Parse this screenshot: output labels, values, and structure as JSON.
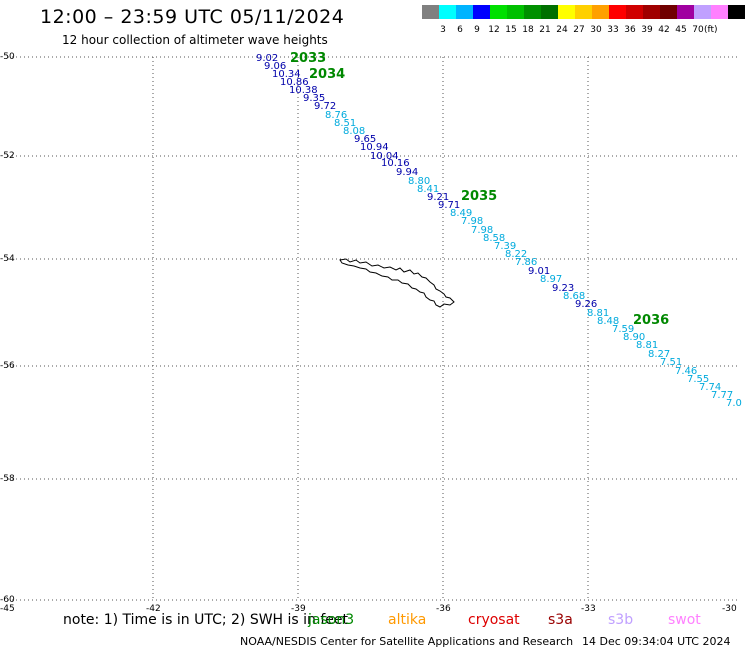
{
  "title": "12:00 – 23:59 UTC 05/11/2024",
  "subtitle": "12 hour collection of altimeter wave heights",
  "legend": {
    "colors": [
      "#808080",
      "#00ffff",
      "#00b4ff",
      "#0000ff",
      "#00e000",
      "#00c000",
      "#009000",
      "#007000",
      "#ffff00",
      "#ffd000",
      "#ffa000",
      "#ff0000",
      "#d00000",
      "#a00000",
      "#700000",
      "#a000a0",
      "#c0a0ff",
      "#ff80ff",
      "#000000"
    ],
    "labels": [
      "3",
      "6",
      "9",
      "12",
      "15",
      "18",
      "21",
      "24",
      "27",
      "30",
      "33",
      "36",
      "39",
      "42",
      "45",
      "70"
    ],
    "unit": "(ft)"
  },
  "axes": {
    "lon_labels": [
      "-45",
      "-42",
      "-39",
      "-36",
      "-33",
      "-30"
    ],
    "lat_labels": [
      "-50",
      "-52",
      "-54",
      "-56",
      "-58",
      "-60"
    ]
  },
  "track_times": [
    "2033",
    "2034",
    "2035",
    "2036"
  ],
  "swh_points": [
    {
      "v": "9.02",
      "c": "#0000aa"
    },
    {
      "v": "9.06",
      "c": "#0000aa"
    },
    {
      "v": "10.34",
      "c": "#0000aa"
    },
    {
      "v": "10.86",
      "c": "#0000aa"
    },
    {
      "v": "10.38",
      "c": "#0000aa"
    },
    {
      "v": "9.35",
      "c": "#0000aa"
    },
    {
      "v": "9.72",
      "c": "#0000aa"
    },
    {
      "v": "8.76",
      "c": "#00aadd"
    },
    {
      "v": "8.51",
      "c": "#00aadd"
    },
    {
      "v": "8.08",
      "c": "#00aadd"
    },
    {
      "v": "9.65",
      "c": "#0000aa"
    },
    {
      "v": "10.94",
      "c": "#0000aa"
    },
    {
      "v": "10.04",
      "c": "#0000aa"
    },
    {
      "v": "10.16",
      "c": "#0000aa"
    },
    {
      "v": "9.94",
      "c": "#0000aa"
    },
    {
      "v": "8.80",
      "c": "#00aadd"
    },
    {
      "v": "8.41",
      "c": "#00aadd"
    },
    {
      "v": "9.21",
      "c": "#0000aa"
    },
    {
      "v": "9.71",
      "c": "#0000aa"
    },
    {
      "v": "8.49",
      "c": "#00aadd"
    },
    {
      "v": "7.98",
      "c": "#00aadd"
    },
    {
      "v": "7.98",
      "c": "#00aadd"
    },
    {
      "v": "8.58",
      "c": "#00aadd"
    },
    {
      "v": "7.39",
      "c": "#00aadd"
    },
    {
      "v": "8.22",
      "c": "#00aadd"
    },
    {
      "v": "7.86",
      "c": "#00aadd"
    },
    {
      "v": "9.01",
      "c": "#0000aa"
    },
    {
      "v": "8.97",
      "c": "#00aadd"
    },
    {
      "v": "9.23",
      "c": "#0000aa"
    },
    {
      "v": "8.68",
      "c": "#00aadd"
    },
    {
      "v": "9.26",
      "c": "#0000aa"
    },
    {
      "v": "8.81",
      "c": "#00aadd"
    },
    {
      "v": "8.48",
      "c": "#00aadd"
    },
    {
      "v": "7.59",
      "c": "#00aadd"
    },
    {
      "v": "8.90",
      "c": "#00aadd"
    },
    {
      "v": "8.81",
      "c": "#00aadd"
    },
    {
      "v": "8.27",
      "c": "#00aadd"
    },
    {
      "v": "7.51",
      "c": "#00aadd"
    },
    {
      "v": "7.46",
      "c": "#00aadd"
    },
    {
      "v": "7.55",
      "c": "#00aadd"
    },
    {
      "v": "7.74",
      "c": "#00aadd"
    },
    {
      "v": "7.77",
      "c": "#00aadd"
    },
    {
      "v": "7.0",
      "c": "#00aadd"
    }
  ],
  "footer": {
    "note": "note: 1) Time is in UTC; 2) SWH is in feet",
    "satellites": [
      {
        "name": "jason3",
        "color": "#008800"
      },
      {
        "name": "altika",
        "color": "#ff9900"
      },
      {
        "name": "cryosat",
        "color": "#dd0000"
      },
      {
        "name": "s3a",
        "color": "#990000"
      },
      {
        "name": "s3b",
        "color": "#c0a0ff"
      },
      {
        "name": "swot",
        "color": "#ff80ff"
      }
    ],
    "credit": "NOAA/NESDIS Center for Satellite Applications and Research",
    "timestamp": "14 Dec 09:34:04 UTC 2024"
  }
}
